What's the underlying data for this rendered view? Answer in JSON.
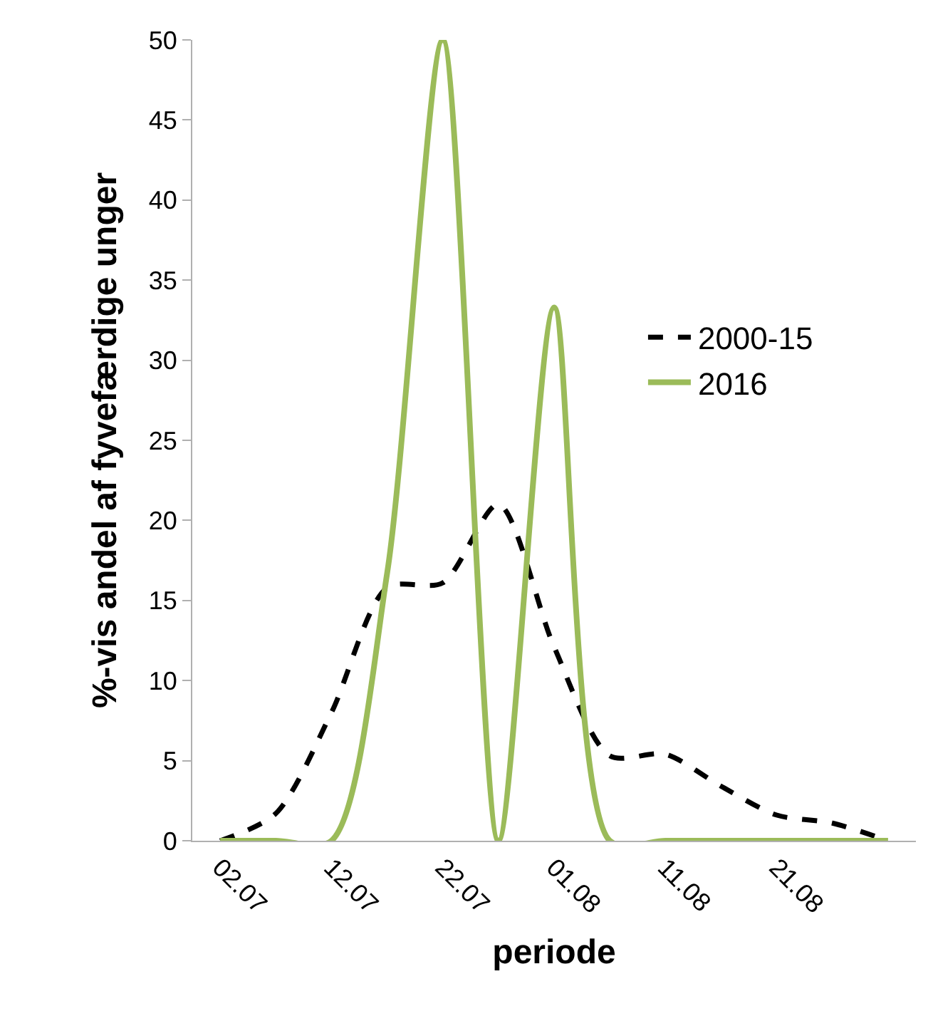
{
  "chart_data": {
    "type": "line",
    "xlabel": "periode",
    "ylabel": "%-vis andel af fyvefærdige unger",
    "categories": [
      "02.07",
      null,
      "12.07",
      null,
      "22.07",
      null,
      "01.08",
      null,
      "11.08",
      null,
      "21.08",
      null,
      null
    ],
    "series": [
      {
        "name": "2000-15",
        "color": "#000000",
        "line_style": "dashed",
        "values": [
          0,
          1.7,
          8.0,
          15.8,
          16.1,
          21.0,
          12.1,
          5.3,
          5.4,
          3.4,
          1.6,
          1.1,
          0
        ]
      },
      {
        "name": "2016",
        "color": "#9bbb59",
        "line_style": "solid",
        "values": [
          0,
          0,
          0,
          16.7,
          50,
          0,
          33.3,
          0,
          0,
          0,
          0,
          0,
          0
        ]
      }
    ],
    "ylim": [
      0,
      50
    ],
    "yticks": [
      0,
      5,
      10,
      15,
      20,
      25,
      30,
      35,
      40,
      45,
      50
    ],
    "legend": "right",
    "marker": "none"
  }
}
